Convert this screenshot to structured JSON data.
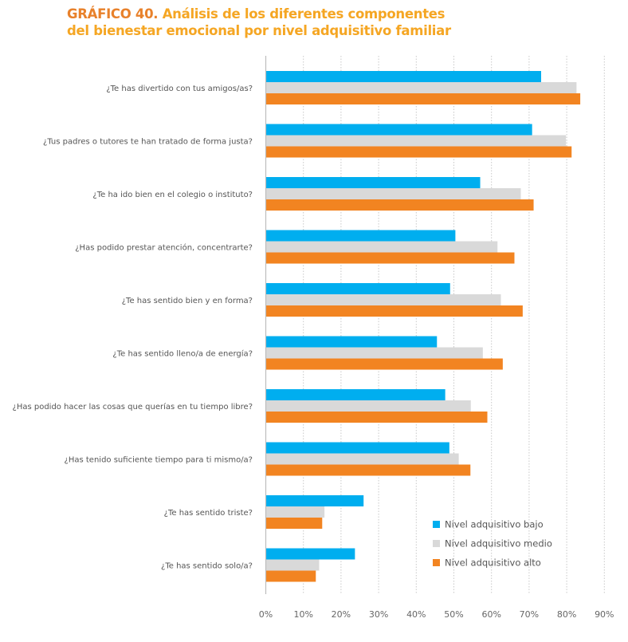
{
  "title": {
    "prefix": "GRÁFICO 40.",
    "line1": "Análisis de los diferentes componentes",
    "line2": "del bienestar emocional por nivel adquisitivo familiar"
  },
  "colors": {
    "bajo": "#00AEEF",
    "medio": "#D9D9D9",
    "alto": "#F28421",
    "title_prefix": "#E8812B",
    "title": "#F5A623"
  },
  "chart_data": {
    "type": "bar",
    "orientation": "horizontal",
    "title": "GRÁFICO 40. Análisis de los diferentes componentes del bienestar emocional por nivel adquisitivo familiar",
    "xlabel": "",
    "ylabel": "",
    "xlim": [
      0,
      90
    ],
    "x_ticks": [
      "0%",
      "10%",
      "20%",
      "30%",
      "40%",
      "50%",
      "60%",
      "70%",
      "80%",
      "90%"
    ],
    "grid": "vertical dotted",
    "legend_position": "bottom-right",
    "categories": [
      "¿Te has divertido con tus amigos/as?",
      "¿Tus padres o tutores te han tratado de forma justa?",
      "¿Te ha ido bien en el colegio o instituto?",
      "¿Has podido prestar atención, concentrarte?",
      "¿Te has sentido bien y en forma?",
      "¿Te has sentido lleno/a de energía?",
      "¿Has podido hacer las cosas que querías en tu tiempo libre?",
      "¿Has tenido suficiente tiempo para ti mismo/a?",
      "¿Te has sentido triste?",
      "¿Te has sentido solo/a?"
    ],
    "series": [
      {
        "name": "Nivel adquisitivo bajo",
        "key": "bajo",
        "values": [
          73.2,
          70.8,
          57.0,
          50.4,
          49.0,
          45.5,
          47.7,
          48.8,
          26.0,
          23.7
        ]
      },
      {
        "name": "Nivel adquisitivo medio",
        "key": "medio",
        "values": [
          82.6,
          79.8,
          67.8,
          61.6,
          62.5,
          57.7,
          54.5,
          51.3,
          15.6,
          14.2
        ]
      },
      {
        "name": "Nivel adquisitivo alto",
        "key": "alto",
        "values": [
          83.6,
          81.3,
          71.2,
          66.1,
          68.3,
          63.0,
          58.9,
          54.4,
          15.0,
          13.3
        ]
      }
    ]
  }
}
